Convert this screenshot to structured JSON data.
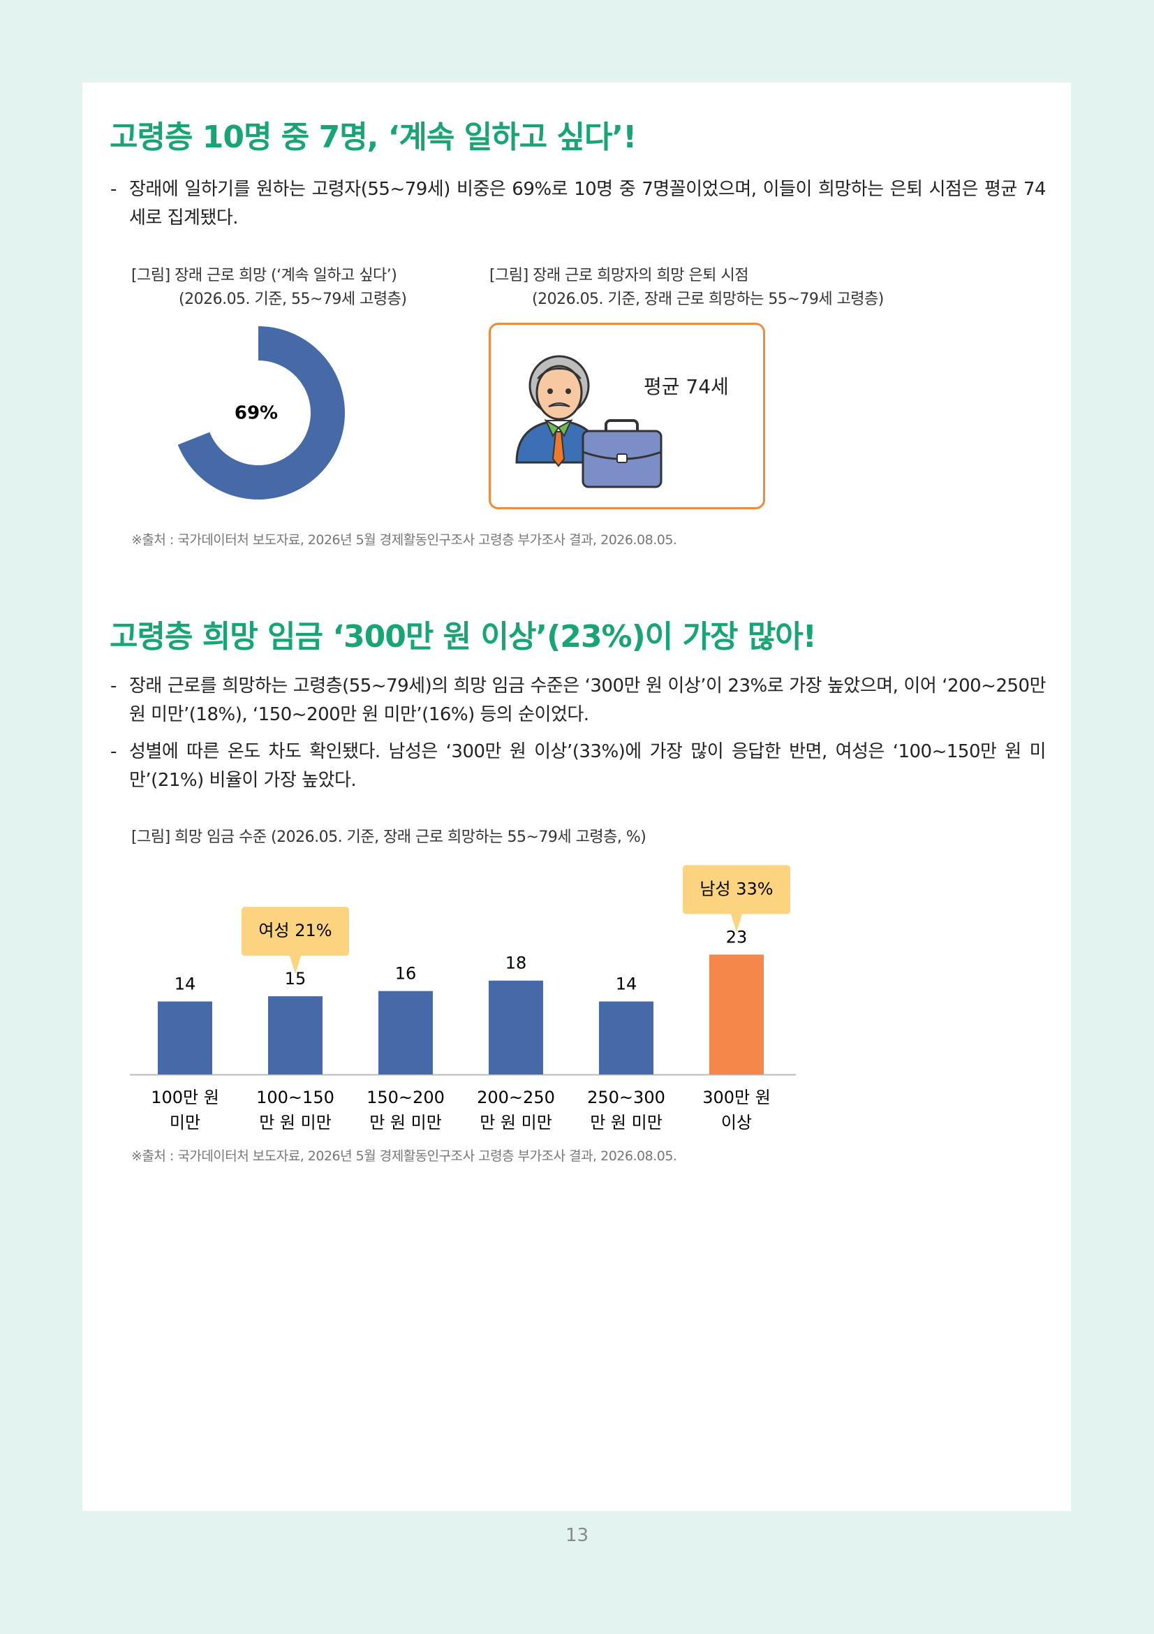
{
  "page": {
    "sections": [
      {
        "title": "고령층 10명 중 7명, ‘계속 일하고 싶다’!",
        "bullets": [
          "장래에 일하기를 원하는 고령자(55~79세) 비중은 69%로 10명 중 7명꼴이었으며, 이들이 희망하는 은퇴 시점은 평균 74세로 집계됐다."
        ],
        "figures": [
          {
            "caption": [
              "[그림] 장래 근로 희망 (‘계속 일하고 싶다’)",
              "(2026.05. 기준, 55~79세 고령층)"
            ],
            "chart_data": {
              "type": "donut",
              "values": [
                69
              ],
              "value_labels": [
                "69%"
              ],
              "color": "#4669a8"
            }
          },
          {
            "caption": [
              "[그림] 장래 근로 희망자의 희망 은퇴 시점",
              "(2026.05. 기준, 장래 근로 희망하는 55~79세 고령층)"
            ],
            "card": "평균 74세"
          }
        ],
        "source": "※출처 : 국가데이터처 보도자료, 2026년 5월 경제활동인구조사 고령층 부가조사 결과, 2026.08.05."
      },
      {
        "title": "고령층 희망 임금 ‘300만 원 이상’(23%)이 가장 많아!",
        "bullets": [
          "장래 근로를 희망하는 고령층(55~79세)의 희망 임금 수준은 ‘300만 원 이상’이 23%로 가장 높았으며, 이어 ‘200~250만 원 미만’(18%), ‘150~200만 원 미만’(16%) 등의 순이었다.",
          "성별에 따른 온도 차도 확인됐다. 남성은 ‘300만 원 이상’(33%)에 가장 많이 응답한 반면, 여성은 ‘100~150만 원 미만’(21%) 비율이 가장 높았다."
        ],
        "figures": [
          {
            "caption": [
              "[그림] 희망 임금 수준 (2026.05. 기준, 장래 근로 희망하는 55~79세 고령층, %)"
            ],
            "chart_data": {
              "type": "bar",
              "categories": [
                [
                  "100만 원",
                  "미만"
                ],
                [
                  "100~150",
                  "만 원 미만"
                ],
                [
                  "150~200",
                  "만 원 미만"
                ],
                [
                  "200~250",
                  "만 원 미만"
                ],
                [
                  "250~300",
                  "만 원 미만"
                ],
                [
                  "300만 원",
                  "이상"
                ]
              ],
              "values": [
                14,
                15,
                16,
                18,
                14,
                23
              ],
              "colors": [
                "#4669a8",
                "#4669a8",
                "#4669a8",
                "#4669a8",
                "#4669a8",
                "#f5874a"
              ],
              "annotations": [
                "여성 21%",
                "남성 33%"
              ]
            }
          }
        ],
        "source": "※출처 : 국가데이터처 보도자료, 2026년 5월 경제활동인구조사 고령층 부가조사 결과, 2026.08.05."
      }
    ],
    "page_number": "13"
  }
}
